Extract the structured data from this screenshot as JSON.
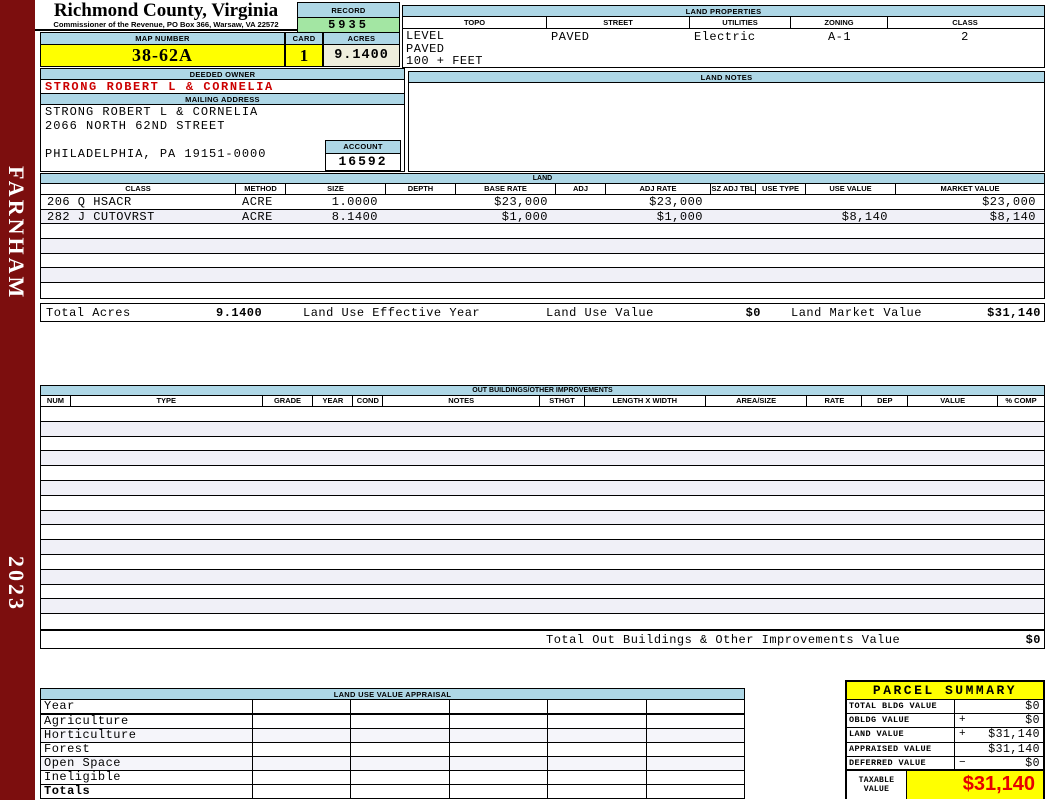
{
  "colors": {
    "sidebar": "#7c0e0e",
    "header_bar": "#aed7e6",
    "highlight_yellow": "#ffff00",
    "record_green": "#a3e6a3",
    "acres_beige": "#eeeedd",
    "owner_red": "#cc0000",
    "taxable_red": "#e60000",
    "row_stripe": "#f0f0f7"
  },
  "sidebar": {
    "district": "FARNHAM",
    "year": "2023"
  },
  "header": {
    "county": "Richmond County, Virginia",
    "subtitle": "Commissioner of the Revenue, PO Box 366, Warsaw, VA 22572",
    "record_label": "RECORD",
    "record_value": "5935",
    "map_number_label": "MAP NUMBER",
    "map_number_value": "38-62A",
    "card_label": "CARD",
    "card_value": "1",
    "acres_label": "ACRES",
    "acres_value": "9.1400"
  },
  "land_properties": {
    "title": "LAND PROPERTIES",
    "columns": [
      "TOPO",
      "STREET",
      "UTILITIES",
      "ZONING",
      "CLASS"
    ],
    "topo_lines": [
      "LEVEL",
      "PAVED",
      "100 + FEET"
    ],
    "street": "PAVED",
    "utilities": "Electric",
    "zoning": "A-1",
    "class": "2"
  },
  "owner": {
    "deeded_owner_label": "DEEDED OWNER",
    "deeded_owner": "STRONG ROBERT L & CORNELIA",
    "mailing_address_label": "MAILING ADDRESS",
    "address_lines": [
      "STRONG ROBERT L & CORNELIA",
      "2066 NORTH 62ND STREET",
      "",
      "PHILADELPHIA, PA 19151-0000"
    ],
    "account_label": "ACCOUNT",
    "account_value": "16592"
  },
  "land_notes": {
    "title": "LAND NOTES"
  },
  "land": {
    "title": "LAND",
    "columns": [
      "CLASS",
      "METHOD",
      "SIZE",
      "DEPTH",
      "BASE RATE",
      "ADJ",
      "ADJ RATE",
      "SZ ADJ TBL",
      "USE TYPE",
      "USE VALUE",
      "MARKET VALUE"
    ],
    "rows": [
      {
        "class": "206 Q HSACR",
        "method": "ACRE",
        "size": "1.0000",
        "depth": "",
        "base_rate": "$23,000",
        "adj": "",
        "adj_rate": "$23,000",
        "sz_adj_tbl": "",
        "use_type": "",
        "use_value": "",
        "market_value": "$23,000"
      },
      {
        "class": "282 J CUTOVRST",
        "method": "ACRE",
        "size": "8.1400",
        "depth": "",
        "base_rate": "$1,000",
        "adj": "",
        "adj_rate": "$1,000",
        "sz_adj_tbl": "",
        "use_type": "",
        "use_value": "$8,140",
        "market_value": "$8,140"
      }
    ],
    "totals": {
      "total_acres_label": "Total Acres",
      "total_acres": "9.1400",
      "effective_year_label": "Land Use Effective Year",
      "use_value_label": "Land Use Value",
      "use_value": "$0",
      "market_value_label": "Land Market Value",
      "market_value": "$31,140"
    }
  },
  "out_buildings": {
    "title": "OUT BUILDINGS/OTHER IMPROVEMENTS",
    "columns": [
      "NUM",
      "TYPE",
      "GRADE",
      "YEAR",
      "COND",
      "NOTES",
      "STHGT",
      "LENGTH X WIDTH",
      "AREA/SIZE",
      "RATE",
      "DEP",
      "VALUE",
      "% COMP"
    ],
    "total_label": "Total Out Buildings & Other Improvements Value",
    "total_value": "$0"
  },
  "land_use_appraisal": {
    "title": "LAND USE VALUE APPRAISAL",
    "row_labels": [
      "Year",
      "Agriculture",
      "Horticulture",
      "Forest",
      "Open Space",
      "Ineligible",
      "Totals"
    ]
  },
  "parcel_summary": {
    "title": "PARCEL SUMMARY",
    "rows": [
      {
        "label": "TOTAL BLDG VALUE",
        "op": "",
        "value": "$0"
      },
      {
        "label": "OBLDG VALUE",
        "op": "+",
        "value": "$0"
      },
      {
        "label": "LAND VALUE",
        "op": "+",
        "value": "$31,140"
      },
      {
        "label": "APPRAISED VALUE",
        "op": "",
        "value": "$31,140"
      },
      {
        "label": "DEFERRED VALUE",
        "op": "−",
        "value": "$0"
      }
    ],
    "taxable_label": "TAXABLE VALUE",
    "taxable_value": "$31,140"
  }
}
